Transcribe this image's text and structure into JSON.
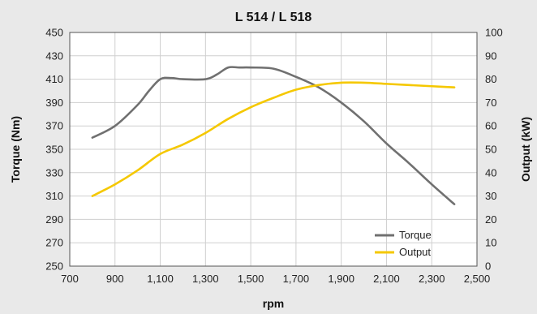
{
  "chart_data": {
    "type": "line",
    "title": "L 514 / L 518",
    "xlabel": "rpm",
    "ylabel_left": "Torque (Nm)",
    "ylabel_right": "Output (kW)",
    "xlim": [
      700,
      2500
    ],
    "ylim_left": [
      250,
      450
    ],
    "ylim_right": [
      0,
      100
    ],
    "x_ticks": [
      700,
      900,
      1100,
      1300,
      1500,
      1700,
      1900,
      2100,
      2300,
      2500
    ],
    "x_tick_labels": [
      "700",
      "900",
      "1,100",
      "1,300",
      "1,500",
      "1,700",
      "1,900",
      "2,100",
      "2,300",
      "2,500"
    ],
    "y_left_ticks": [
      250,
      270,
      290,
      310,
      330,
      350,
      370,
      390,
      410,
      430,
      450
    ],
    "y_right_ticks": [
      0,
      10,
      20,
      30,
      40,
      50,
      60,
      70,
      80,
      90,
      100
    ],
    "grid": true,
    "legend_position": "bottom-right",
    "series": [
      {
        "name": "Torque",
        "axis": "left",
        "color": "#707070",
        "x": [
          800,
          900,
          1000,
          1050,
          1100,
          1150,
          1200,
          1300,
          1350,
          1400,
          1450,
          1500,
          1600,
          1700,
          1800,
          1900,
          2000,
          2100,
          2200,
          2300,
          2400
        ],
        "y": [
          360,
          370,
          388,
          400,
          410,
          411,
          410,
          410,
          414,
          420,
          420,
          420,
          419,
          412,
          403,
          390,
          374,
          355,
          338,
          320,
          303
        ]
      },
      {
        "name": "Output",
        "axis": "right",
        "color": "#f5c800",
        "x": [
          800,
          900,
          1000,
          1100,
          1200,
          1300,
          1400,
          1500,
          1600,
          1700,
          1800,
          1900,
          2000,
          2100,
          2200,
          2300,
          2400
        ],
        "y": [
          30,
          35,
          41,
          48,
          52,
          57,
          63,
          68,
          72,
          75.5,
          77.5,
          78.5,
          78.5,
          78,
          77.5,
          77,
          76.5
        ]
      }
    ]
  }
}
